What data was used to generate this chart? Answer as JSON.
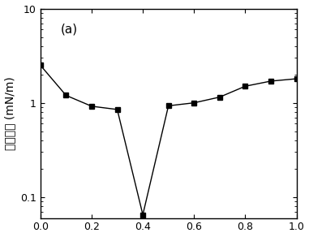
{
  "x": [
    0.0,
    0.1,
    0.2,
    0.3,
    0.4,
    0.5,
    0.6,
    0.7,
    0.8,
    0.9,
    1.0
  ],
  "y": [
    2.5,
    1.2,
    0.92,
    0.85,
    0.065,
    0.93,
    1.0,
    1.15,
    1.5,
    1.7,
    1.8
  ],
  "xlabel": "",
  "ylabel_chinese": "界面张力",
  "ylabel_unit": "(mN/m)",
  "annotation": "(a)",
  "xlim": [
    0.0,
    1.0
  ],
  "ylim_log": [
    0.06,
    10
  ],
  "xticks": [
    0.0,
    0.2,
    0.4,
    0.6,
    0.8,
    1.0
  ],
  "yticks": [
    0.1,
    1,
    10
  ],
  "ytick_labels": [
    "0.1",
    "1",
    "10"
  ],
  "marker": "s",
  "marker_color": "black",
  "line_color": "black",
  "marker_size": 5,
  "background_color": "#ffffff",
  "tick_fontsize": 9,
  "label_fontsize": 10
}
